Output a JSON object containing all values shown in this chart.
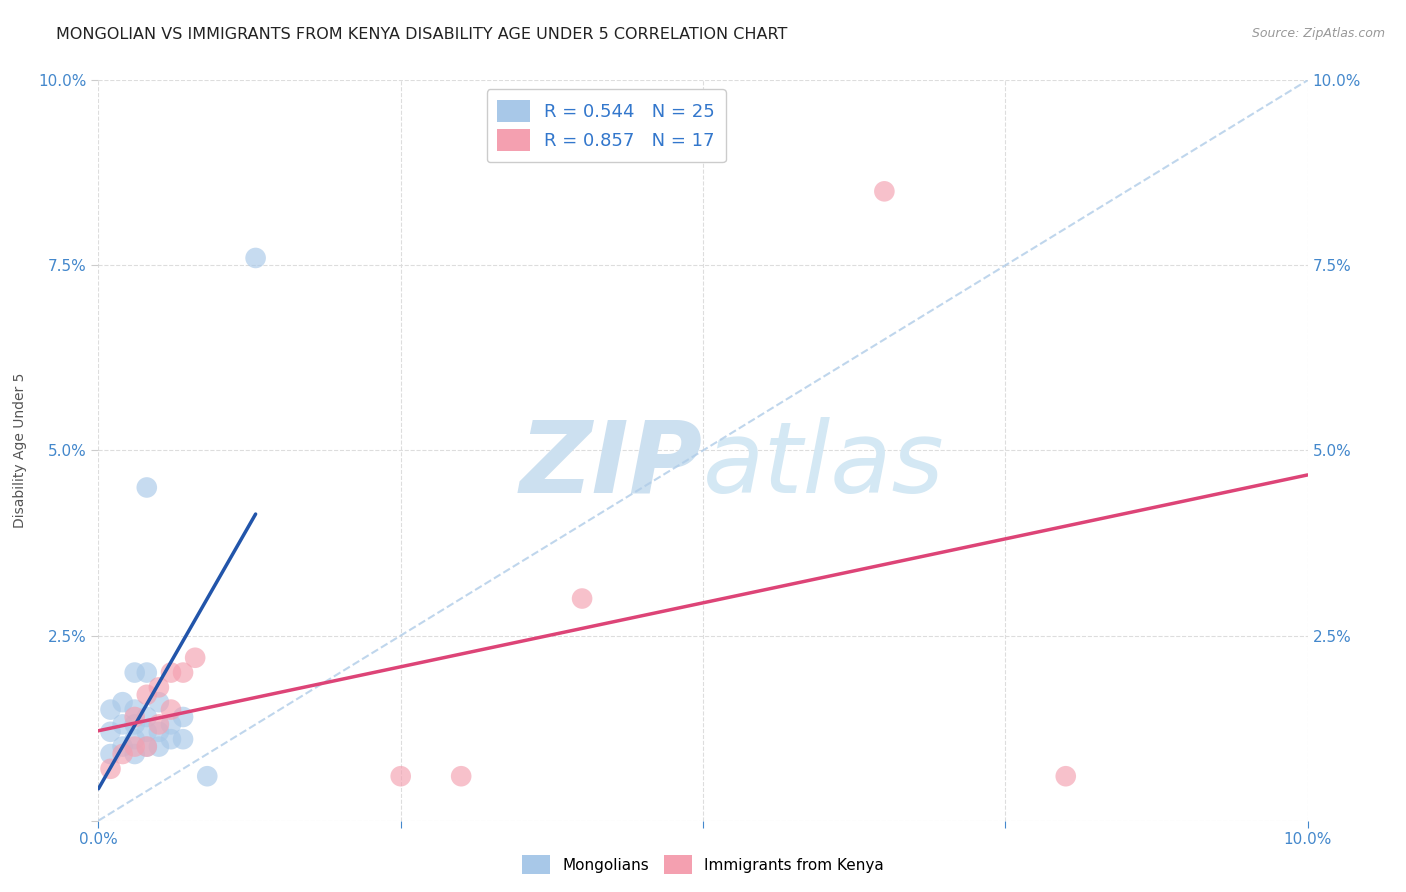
{
  "title": "MONGOLIAN VS IMMIGRANTS FROM KENYA DISABILITY AGE UNDER 5 CORRELATION CHART",
  "source": "Source: ZipAtlas.com",
  "ylabel": "Disability Age Under 5",
  "xlim": [
    0,
    0.1
  ],
  "ylim": [
    0,
    0.1
  ],
  "mongolians_x": [
    0.001,
    0.001,
    0.001,
    0.002,
    0.002,
    0.002,
    0.003,
    0.003,
    0.003,
    0.003,
    0.003,
    0.004,
    0.004,
    0.004,
    0.004,
    0.004,
    0.005,
    0.005,
    0.005,
    0.006,
    0.006,
    0.007,
    0.007,
    0.009,
    0.013
  ],
  "mongolians_y": [
    0.009,
    0.012,
    0.015,
    0.01,
    0.013,
    0.016,
    0.009,
    0.011,
    0.013,
    0.015,
    0.02,
    0.01,
    0.012,
    0.014,
    0.02,
    0.045,
    0.01,
    0.012,
    0.016,
    0.011,
    0.013,
    0.011,
    0.014,
    0.006,
    0.076
  ],
  "kenya_x": [
    0.001,
    0.002,
    0.003,
    0.003,
    0.004,
    0.004,
    0.005,
    0.005,
    0.006,
    0.006,
    0.007,
    0.008,
    0.025,
    0.03,
    0.04,
    0.065,
    0.08
  ],
  "kenya_y": [
    0.007,
    0.009,
    0.01,
    0.014,
    0.01,
    0.017,
    0.013,
    0.018,
    0.015,
    0.02,
    0.02,
    0.022,
    0.006,
    0.006,
    0.03,
    0.085,
    0.006
  ],
  "mongolians_R": 0.544,
  "mongolians_N": 25,
  "kenya_R": 0.857,
  "kenya_N": 17,
  "blue_scatter_color": "#a8c8e8",
  "pink_scatter_color": "#f4a0b0",
  "blue_line_color": "#2255aa",
  "pink_line_color": "#dd4477",
  "dash_line_color": "#b0cce8",
  "title_fontsize": 11.5,
  "legend_fontsize": 13,
  "tick_fontsize": 11,
  "watermark_color": "#cce0f0",
  "background_color": "#ffffff",
  "grid_color": "#dddddd"
}
